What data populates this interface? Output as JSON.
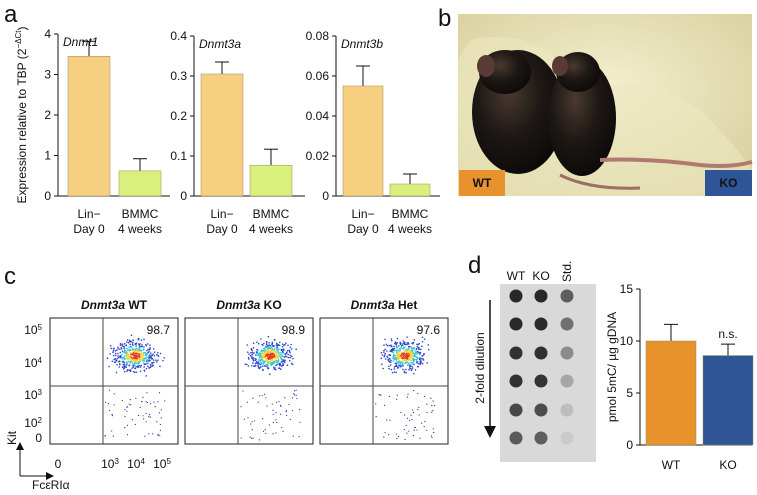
{
  "panel_labels": [
    "a",
    "b",
    "c",
    "d"
  ],
  "chart_data": [
    {
      "type": "bar",
      "title": "Dnmt1",
      "ylabel": "Expression relative to TBP (2",
      "ylabel_exponent": "−ΔCt",
      "ylabel_close": ")",
      "categories": [
        [
          "Lin−",
          "Day 0"
        ],
        [
          "BMMC",
          "4 weeks"
        ]
      ],
      "values": [
        3.45,
        0.62
      ],
      "errors": [
        0.37,
        0.3
      ],
      "colors": [
        "#f7cf80",
        "#d9f07d"
      ],
      "ylim": [
        0,
        4
      ],
      "yticks": [
        0,
        1,
        2,
        3,
        4
      ]
    },
    {
      "type": "bar",
      "title": "Dnmt3a",
      "categories": [
        [
          "Lin−",
          "Day 0"
        ],
        [
          "BMMC",
          "4 weeks"
        ]
      ],
      "values": [
        0.305,
        0.077
      ],
      "errors": [
        0.03,
        0.04
      ],
      "colors": [
        "#f7cf80",
        "#d9f07d"
      ],
      "ylim": [
        0,
        0.4
      ],
      "yticks": [
        0,
        0.1,
        0.2,
        0.3,
        0.4
      ]
    },
    {
      "type": "bar",
      "title": "Dnmt3b",
      "categories": [
        [
          "Lin−",
          "Day 0"
        ],
        [
          "BMMC",
          "4 weeks"
        ]
      ],
      "values": [
        0.055,
        0.006
      ],
      "errors": [
        0.01,
        0.005
      ],
      "colors": [
        "#f7cf80",
        "#d9f07d"
      ],
      "ylim": [
        0,
        0.08
      ],
      "yticks": [
        0,
        0.02,
        0.04,
        0.06,
        0.08
      ]
    },
    {
      "type": "bar",
      "ylabel": "pmol 5mC/ µg gDNA",
      "categories": [
        "WT",
        "KO"
      ],
      "values": [
        10.0,
        8.6
      ],
      "errors": [
        1.6,
        1.1
      ],
      "colors": [
        "#e8922e",
        "#2f5597"
      ],
      "ylim": [
        0,
        15
      ],
      "yticks": [
        0,
        5,
        10,
        15
      ],
      "annotations": [
        {
          "text": "n.s.",
          "category": 1
        }
      ]
    }
  ],
  "photo": {
    "labels": [
      {
        "text": "WT",
        "color": "#e8922e"
      },
      {
        "text": "KO",
        "color": "#2d5597"
      }
    ]
  },
  "flow": {
    "panels": [
      {
        "gene": "Dnmt3a",
        "genotype": "WT",
        "percent": 98.7
      },
      {
        "gene": "Dnmt3a",
        "genotype": "KO",
        "percent": 98.9
      },
      {
        "gene": "Dnmt3a",
        "genotype": "Het",
        "percent": 97.6
      }
    ],
    "yticks": [
      {
        "base": "10",
        "exp": "5"
      },
      {
        "base": "10",
        "exp": "4"
      },
      {
        "base": "10",
        "exp": "3"
      },
      {
        "base": "10",
        "exp": "2"
      },
      {
        "base": "0"
      }
    ],
    "xticks": [
      {
        "base": "0"
      },
      {
        "base": "10",
        "exp": "3"
      },
      {
        "base": "10",
        "exp": "4"
      },
      {
        "base": "10",
        "exp": "5"
      }
    ],
    "ylabel": "Kit",
    "xlabel": "FcεRIα"
  },
  "dot_blot": {
    "columns": [
      "WT",
      "KO",
      "Std."
    ],
    "arrow_label": "2-fold dilution"
  }
}
